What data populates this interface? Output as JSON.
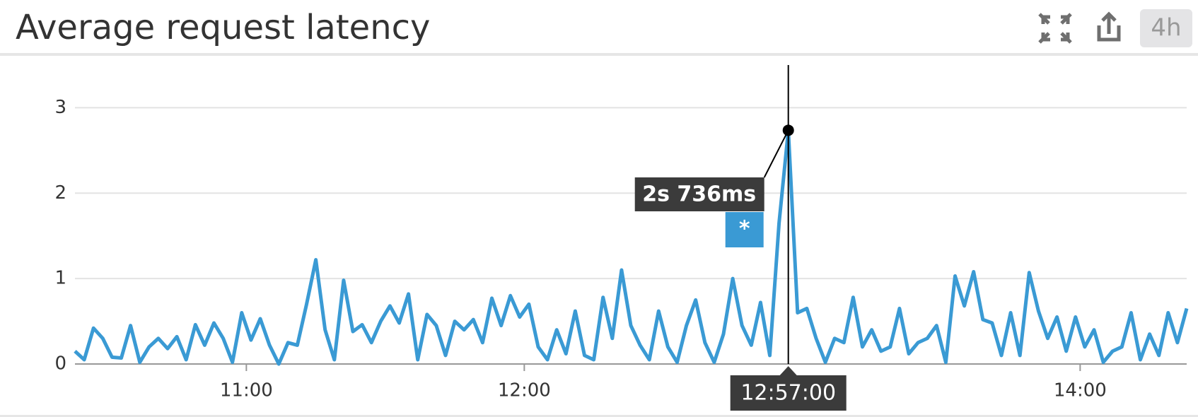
{
  "chart_data": {
    "type": "line",
    "title": "Average request latency",
    "timeframe": "4h",
    "x": [
      623,
      625,
      627,
      629,
      631,
      633,
      635,
      637,
      639,
      641,
      643,
      645,
      647,
      649,
      651,
      653,
      655,
      657,
      659,
      661,
      663,
      665,
      667,
      669,
      671,
      673,
      675,
      677,
      679,
      681,
      683,
      685,
      687,
      689,
      691,
      693,
      695,
      697,
      699,
      701,
      703,
      705,
      707,
      709,
      711,
      713,
      715,
      717,
      719,
      721,
      723,
      725,
      727,
      729,
      731,
      733,
      735,
      737,
      739,
      741,
      743,
      745,
      747,
      749,
      751,
      753,
      755,
      757,
      759,
      761,
      763,
      765,
      767,
      769,
      771,
      773,
      775,
      777,
      779,
      781,
      783,
      785,
      787,
      789,
      791,
      793,
      795,
      797,
      799,
      801,
      803,
      805,
      807,
      809,
      811,
      813,
      815,
      817,
      819,
      821,
      823,
      825,
      827,
      829,
      831,
      833,
      835,
      837,
      839,
      841,
      843,
      845,
      847,
      849,
      851,
      853,
      855,
      857,
      859,
      861,
      863
    ],
    "series": [
      {
        "name": "*",
        "color": "#3a9ad4",
        "values": [
          0.15,
          0.05,
          0.42,
          0.3,
          0.08,
          0.07,
          0.45,
          0.02,
          0.2,
          0.3,
          0.18,
          0.32,
          0.05,
          0.46,
          0.22,
          0.48,
          0.3,
          0.02,
          0.6,
          0.28,
          0.53,
          0.22,
          0.0,
          0.25,
          0.22,
          0.7,
          1.22,
          0.4,
          0.05,
          0.98,
          0.38,
          0.46,
          0.25,
          0.5,
          0.68,
          0.48,
          0.82,
          0.05,
          0.58,
          0.45,
          0.1,
          0.5,
          0.4,
          0.52,
          0.25,
          0.77,
          0.45,
          0.8,
          0.55,
          0.7,
          0.2,
          0.05,
          0.4,
          0.12,
          0.62,
          0.1,
          0.05,
          0.78,
          0.3,
          1.1,
          0.45,
          0.22,
          0.05,
          0.62,
          0.2,
          0.02,
          0.45,
          0.75,
          0.25,
          0.02,
          0.35,
          1.0,
          0.45,
          0.22,
          0.72,
          0.1,
          1.65,
          2.736,
          0.6,
          0.65,
          0.3,
          0.02,
          0.3,
          0.25,
          0.78,
          0.2,
          0.4,
          0.15,
          0.2,
          0.65,
          0.12,
          0.25,
          0.3,
          0.45,
          0.02,
          1.03,
          0.68,
          1.08,
          0.52,
          0.48,
          0.1,
          0.6,
          0.1,
          1.07,
          0.62,
          0.3,
          0.55,
          0.15,
          0.55,
          0.2,
          0.4,
          0.02,
          0.15,
          0.2,
          0.6,
          0.05,
          0.35,
          0.1,
          0.6,
          0.25,
          0.65
        ]
      }
    ],
    "xlim": [
      623,
      863
    ],
    "xticks": [
      {
        "value": 660,
        "label": "11:00"
      },
      {
        "value": 720,
        "label": "12:00"
      },
      {
        "value": 840,
        "label": "14:00"
      }
    ],
    "ylim": [
      0,
      3.5
    ],
    "yticks": [
      0,
      1,
      2,
      3
    ],
    "grid": true,
    "tooltip": {
      "x": 777,
      "time": "12:57:00",
      "value": 2.736,
      "value_label": "2s 736ms"
    }
  }
}
